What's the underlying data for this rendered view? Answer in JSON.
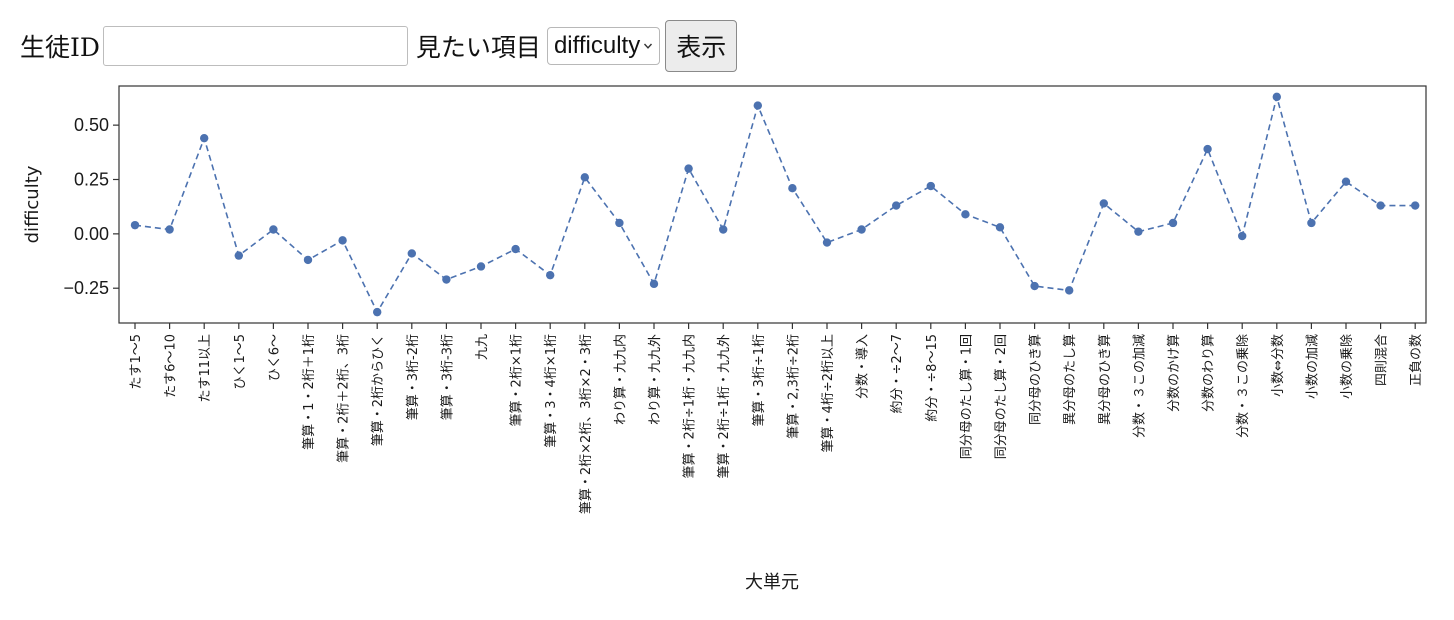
{
  "form": {
    "student_id_label": "生徒ID",
    "student_id_value": "",
    "item_label": "見たい項目",
    "item_selected": "difficulty",
    "show_button": "表示"
  },
  "chart_data": {
    "type": "line",
    "line_style": "dashed",
    "marker": "circle",
    "color": "#4c72b0",
    "xlabel": "大単元",
    "ylabel": "difficulty",
    "ylim": [
      -0.41,
      0.68
    ],
    "yticks": [
      -0.25,
      0.0,
      0.25,
      0.5
    ],
    "ytick_labels": [
      "−0.25",
      "0.00",
      "0.25",
      "0.50"
    ],
    "grid": false,
    "categories": [
      "たす1〜5",
      "たす6〜10",
      "たす11以上",
      "ひく1〜5",
      "ひく6〜",
      "筆算・1・2桁＋1桁",
      "筆算・2桁＋2桁、3桁",
      "筆算・2桁からひく",
      "筆算・3桁-2桁",
      "筆算・3桁-3桁",
      "九九",
      "筆算・2桁×1桁",
      "筆算・3・4桁×1桁",
      "筆算・2桁×2桁、3桁×2・3桁",
      "わり算・九九内",
      "わり算・九九外",
      "筆算・2桁÷1桁・九九内",
      "筆算・2桁÷1桁・九九外",
      "筆算・3桁÷1桁",
      "筆算・2,3桁÷2桁",
      "筆算・4桁÷2桁以上",
      "分数・導入",
      "約分・÷2〜7",
      "約分・÷8〜15",
      "同分母のたし算・1回",
      "同分母のたし算・2回",
      "同分母のひき算",
      "異分母のたし算",
      "異分母のひき算",
      "分数・３この加減",
      "分数のかけ算",
      "分数のわり算",
      "分数・３この乗除",
      "小数⇔分数",
      "小数の加減",
      "小数の乗除",
      "四則混合",
      "正負の数"
    ],
    "values": [
      0.04,
      0.02,
      0.44,
      -0.1,
      0.02,
      -0.12,
      -0.03,
      -0.36,
      -0.09,
      -0.21,
      -0.15,
      -0.07,
      -0.19,
      0.26,
      0.05,
      -0.23,
      0.3,
      0.02,
      0.59,
      0.21,
      -0.04,
      0.02,
      0.13,
      0.22,
      0.09,
      0.03,
      -0.24,
      -0.26,
      0.14,
      0.01,
      0.05,
      0.39,
      -0.01,
      0.63,
      0.05,
      0.24,
      0.13,
      0.13
    ]
  }
}
